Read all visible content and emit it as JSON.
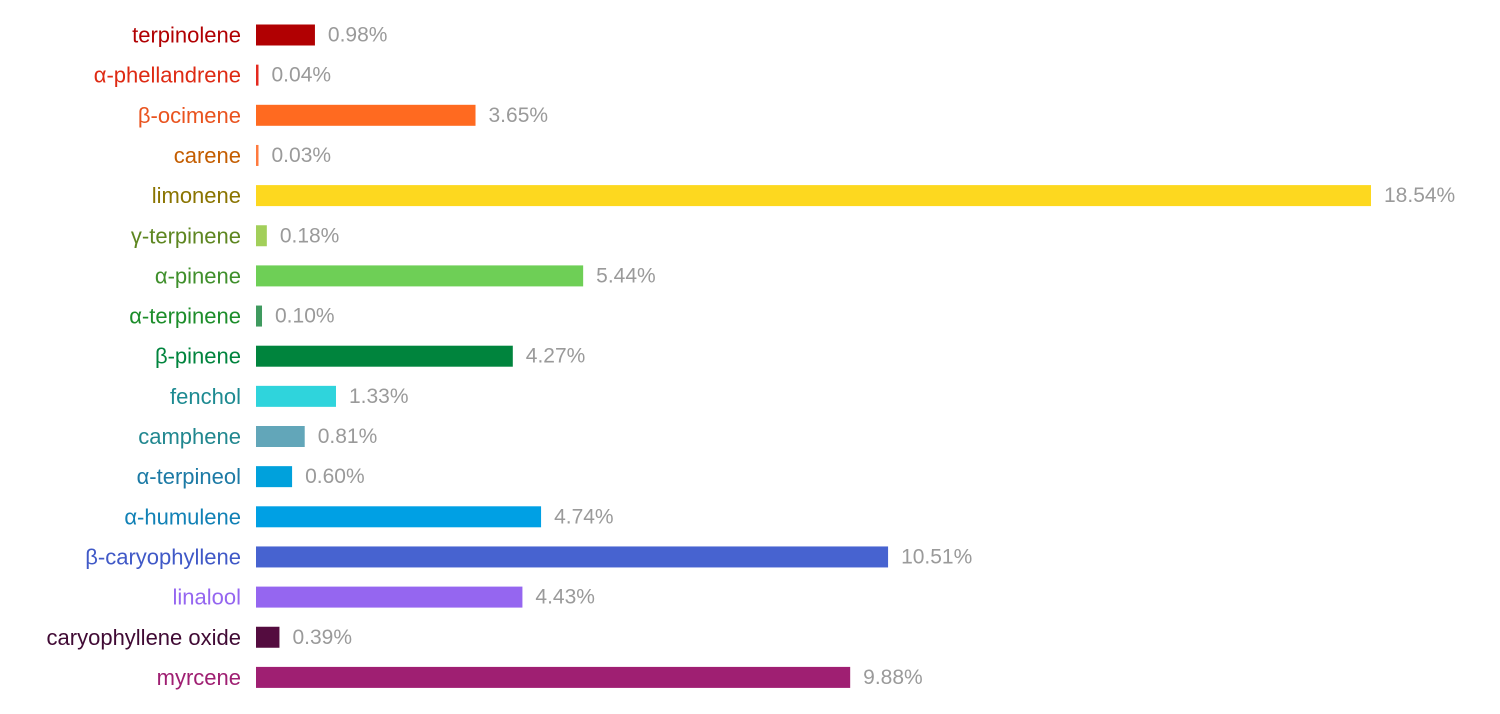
{
  "chart_data": {
    "type": "bar",
    "orientation": "horizontal",
    "title": "",
    "xlabel": "",
    "ylabel": "",
    "grid": false,
    "legend": "none",
    "xlim": [
      0,
      18.54
    ],
    "categories": [
      "terpinolene",
      "α-phellandrene",
      "β-ocimene",
      "carene",
      "limonene",
      "γ-terpinene",
      "α-pinene",
      "α-terpinene",
      "β-pinene",
      "fenchol",
      "camphene",
      "α-terpineol",
      "α-humulene",
      "β-caryophyllene",
      "linalool",
      "caryophyllene oxide",
      "myrcene"
    ],
    "values": [
      0.98,
      0.04,
      3.65,
      0.03,
      18.54,
      0.18,
      5.44,
      0.1,
      4.27,
      1.33,
      0.81,
      0.6,
      4.74,
      10.51,
      4.43,
      0.39,
      9.88
    ],
    "value_labels": [
      "0.98%",
      "0.04%",
      "3.65%",
      "0.03%",
      "18.54%",
      "0.18%",
      "5.44%",
      "0.10%",
      "4.27%",
      "1.33%",
      "0.81%",
      "0.60%",
      "4.74%",
      "10.51%",
      "4.43%",
      "0.39%",
      "9.88%"
    ],
    "bar_colors": [
      "#b10002",
      "#e4291f",
      "#ff6a20",
      "#ff7a3e",
      "#fdd81f",
      "#a2cf5a",
      "#6ecf56",
      "#3f9a5f",
      "#00843d",
      "#2fd4dc",
      "#62a6b9",
      "#00a1dc",
      "#00a0e4",
      "#4763d0",
      "#9566f0",
      "#540c3f",
      "#9f1f72"
    ],
    "label_colors": [
      "#b10002",
      "#de2a13",
      "#e9531e",
      "#c45d00",
      "#8a7400",
      "#5d8620",
      "#3f8f2b",
      "#1c8d2a",
      "#00843d",
      "#1d8a91",
      "#21878f",
      "#1c7aa5",
      "#1181b6",
      "#4059c7",
      "#9566f0",
      "#400a34",
      "#9f1f72"
    ],
    "value_label_color": "#9a9a9a"
  }
}
